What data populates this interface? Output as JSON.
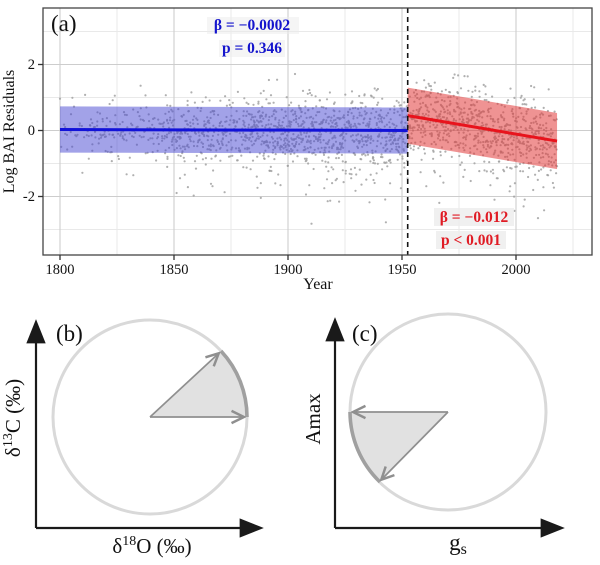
{
  "chart_data": {
    "type": "scatter",
    "panel_label": "(a)",
    "xlabel": "Year",
    "ylabel": "Log BAI Residuals",
    "x_ticks": [
      1800,
      1850,
      1900,
      1950,
      2000
    ],
    "x_minor_ticks": [
      1825,
      1875,
      1925,
      1975,
      2025
    ],
    "y_ticks": [
      2,
      0,
      -2
    ],
    "y_minor_ticks": [
      3,
      1,
      -1,
      -3
    ],
    "xlim": [
      1792.5,
      2033
    ],
    "ylim": [
      -3.77,
      3.71
    ],
    "grid": true,
    "breakpoint_year": 1952.5,
    "series": [
      {
        "name": "pre-breakpoint regression",
        "beta": -0.0002,
        "p_value": "0.346",
        "x0": 1800,
        "x1": 1952.5,
        "y0": 0.03,
        "y1": 0.0,
        "band_halfwidth": 0.7,
        "line_color": "#1212d9",
        "band_color": "#4646d2",
        "band_opacity": 0.5,
        "annotation": {
          "beta_label": "β = −0.0002",
          "p_label": "p = 0.346",
          "color": "#1414cd"
        }
      },
      {
        "name": "post-breakpoint regression",
        "beta": -0.012,
        "p_value": "< 0.001",
        "x0": 1952.5,
        "x1": 2018,
        "y0": 0.45,
        "y1": -0.32,
        "band_halfwidth": 0.85,
        "line_color": "#e8131c",
        "band_color": "#e23b3b",
        "band_opacity": 0.55,
        "annotation": {
          "beta_label": "β = −0.012",
          "p_label": "p < 0.001",
          "color": "#e01b24"
        }
      }
    ],
    "scatter": {
      "seed": 7,
      "color": "#a2a2a2",
      "opacity": 0.85,
      "radius": 1.1,
      "year_start": 1800,
      "year_end": 2018
    }
  },
  "panel_b": {
    "label": "(b)",
    "xlabel": {
      "base": "δ",
      "sup": "18",
      "rest": "O (‰)"
    },
    "ylabel": {
      "base": "δ",
      "sup": "13",
      "rest": "C (‰)"
    },
    "wedge": {
      "from_deg": 0,
      "to_deg": 43,
      "direction": "upper-right"
    }
  },
  "panel_c": {
    "label": "(c)",
    "xlabel": {
      "base": "g",
      "sub": "s"
    },
    "ylabel": "Amax",
    "wedge": {
      "from_deg": 180,
      "to_deg": 226,
      "direction": "lower-left"
    }
  },
  "colors": {
    "grid_major": "#cdcdcd",
    "grid_minor": "#e9e9e9",
    "border": "#454545",
    "axis": "#1a1a1a",
    "tick": "#333333",
    "dashed": "#141414",
    "circle_stroke": "#d9d9d9",
    "arc_stroke": "#a0a0a0",
    "wedge_fill": "#dcdcdc",
    "wedge_edge": "#8f8f8f"
  }
}
